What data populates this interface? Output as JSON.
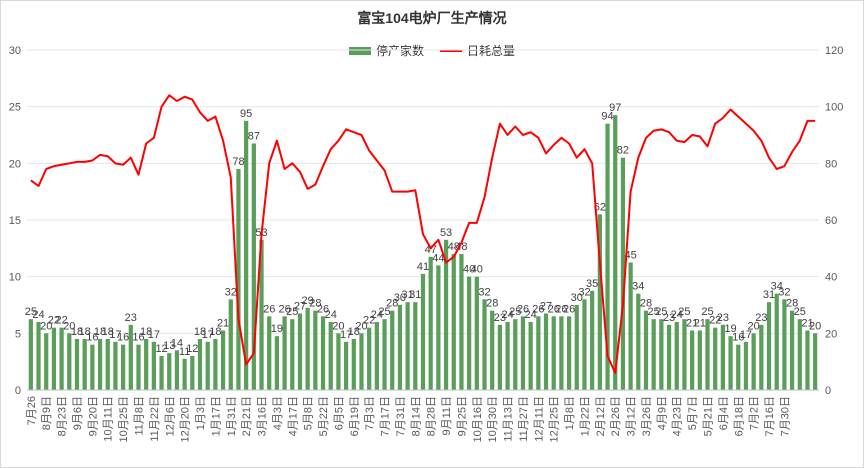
{
  "chart_data": {
    "type": "bar",
    "title": "富宝104电炉厂生产情况",
    "legend_position": "top-center",
    "grid": true,
    "colors": {
      "bar": "#5a9e5a",
      "line": "#ff0000",
      "text": "#333333",
      "grid": "#e6e6e6"
    },
    "y_left": {
      "min": 0,
      "max": 30,
      "ticks": [
        0,
        5,
        10,
        15,
        20,
        25,
        30
      ]
    },
    "y_right": {
      "min": 0,
      "max": 120,
      "ticks": [
        0,
        20,
        40,
        60,
        80,
        100,
        120
      ]
    },
    "x_tick_labels": [
      "7月26",
      "8月9日",
      "8月23日",
      "9月6日",
      "9月20日",
      "10月11日",
      "10月25日",
      "11月8日",
      "11月22日",
      "12月6日",
      "12月20日",
      "1月3日",
      "1月17日",
      "1月31日",
      "2月21日",
      "3月16日",
      "4月3日",
      "4月17日",
      "5月8日",
      "5月22日",
      "6月5日",
      "6月19日",
      "7月3日",
      "7月17日",
      "7月31日",
      "8月14日",
      "8月28日",
      "9月11日",
      "9月25日",
      "10月16日",
      "10月30日",
      "11月13日",
      "11月27日",
      "12月11日",
      "12月25日",
      "1月8日",
      "1月22日",
      "2月12日",
      "2月26日",
      "3月12日",
      "3月26日",
      "4月9日",
      "4月23日",
      "5月7日",
      "5月21日",
      "6月4日",
      "6月18日",
      "7月2日",
      "7月16日",
      "7月30日"
    ],
    "series": [
      {
        "name": "停产家数",
        "type": "bar",
        "axis": "left",
        "values": [
          6.25,
          6.0,
          5.0,
          5.5,
          5.5,
          5.0,
          4.5,
          4.5,
          4.0,
          4.5,
          4.5,
          4.25,
          4.0,
          5.75,
          4.0,
          4.5,
          4.25,
          3.0,
          3.25,
          3.5,
          2.75,
          3.0,
          4.5,
          4.25,
          4.5,
          5.25,
          8.0,
          19.5,
          23.75,
          21.75,
          13.25,
          6.5,
          4.75,
          6.5,
          6.25,
          6.75,
          7.25,
          7.0,
          6.5,
          6.0,
          5.0,
          4.25,
          4.5,
          5.0,
          5.5,
          6.0,
          6.25,
          7.0,
          7.5,
          7.75,
          7.75,
          10.25,
          11.75,
          11.0,
          13.25,
          12.0,
          12.0,
          10.0,
          10.0,
          8.0,
          7.0,
          5.75,
          6.0,
          6.25,
          6.5,
          6.0,
          6.5,
          6.75,
          6.5,
          6.5,
          6.5,
          7.5,
          8.0,
          8.75,
          15.5,
          23.5,
          24.25,
          20.5,
          11.25,
          8.5,
          7.0,
          6.25,
          6.25,
          5.75,
          6.0,
          6.25,
          5.25,
          5.25,
          6.25,
          5.5,
          5.75,
          4.75,
          4.0,
          4.25,
          5.0,
          5.75,
          7.75,
          8.5,
          8.0,
          7.0,
          6.25,
          5.25,
          5.0
        ]
      },
      {
        "name": "日耗总量",
        "type": "line",
        "axis": "right",
        "values": [
          74,
          72,
          78,
          79,
          79.5,
          80,
          80.5,
          80.5,
          81,
          83,
          82.5,
          80,
          79.5,
          82,
          76,
          87,
          89,
          100,
          104,
          102,
          103.5,
          102.5,
          98,
          95,
          96.5,
          88,
          75,
          25,
          9,
          13,
          55,
          80,
          88,
          78,
          80,
          77,
          71,
          72.5,
          79,
          85,
          88,
          92,
          91,
          90,
          84.5,
          81,
          77.5,
          70,
          70,
          70,
          70.5,
          55,
          50,
          53,
          45,
          47,
          52,
          59,
          59,
          68,
          82,
          94,
          90,
          93,
          90,
          91,
          89,
          83.5,
          86.5,
          89,
          87,
          82,
          85,
          80,
          45,
          12,
          6,
          30,
          70,
          82,
          89,
          91.5,
          92,
          91,
          88,
          87.5,
          90,
          89.5,
          86,
          94,
          96,
          99,
          96.5,
          94,
          91.5,
          88,
          82,
          78,
          79,
          84,
          88,
          95,
          95
        ]
      }
    ],
    "bar_data_labels": [
      "25",
      "24",
      "20",
      "22",
      "22",
      "20",
      "18",
      "18",
      "16",
      "18",
      "18",
      "17",
      "16",
      "23",
      "16",
      "18",
      "17",
      "12",
      "13",
      "14",
      "11",
      "12",
      "18",
      "17",
      "18",
      "21",
      "32",
      "78",
      "95",
      "87",
      "53",
      "26",
      "19",
      "26",
      "25",
      "27",
      "29",
      "28",
      "26",
      "24",
      "20",
      "17",
      "18",
      "20",
      "22",
      "24",
      "25",
      "28",
      "30",
      "31",
      "31",
      "41",
      "47",
      "44",
      "53",
      "48",
      "48",
      "40",
      "40",
      "32",
      "28",
      "23",
      "24",
      "25",
      "26",
      "24",
      "26",
      "27",
      "26",
      "26",
      "26",
      "30",
      "32",
      "35",
      "62",
      "94",
      "97",
      "82",
      "45",
      "34",
      "28",
      "25",
      "25",
      "23",
      "24",
      "25",
      "21",
      "21",
      "25",
      "22",
      "23",
      "19",
      "16",
      "17",
      "20",
      "23",
      "31",
      "34",
      "32",
      "28",
      "25",
      "21",
      "20"
    ]
  }
}
